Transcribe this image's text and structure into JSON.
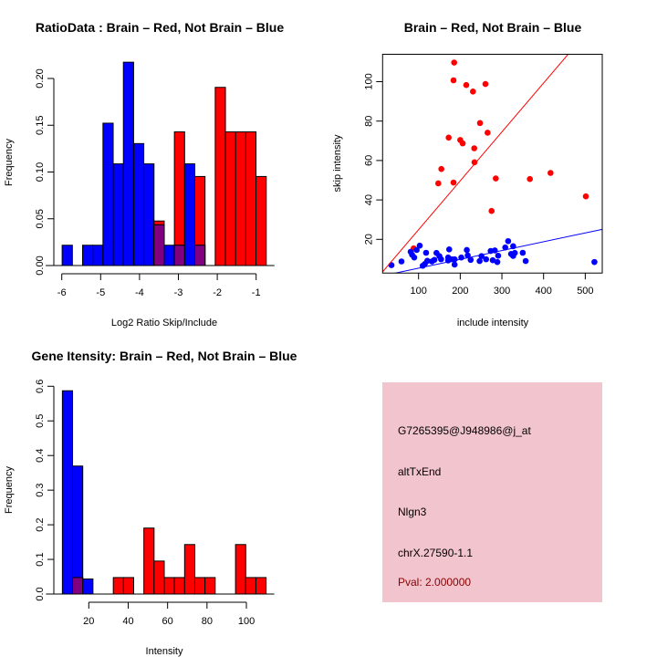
{
  "colors": {
    "brain": "#ff0000",
    "not_brain": "#0000ff",
    "overlap": "#800080",
    "info_bg": "#f2c4cd",
    "pval": "#8b0000"
  },
  "chart_data": [
    {
      "type": "bar",
      "subtype": "histogram",
      "title": "RatioData : Brain – Red, Not Brain – Blue",
      "xlabel": "Log2 Ratio Skip/Include",
      "ylabel": "Frequency",
      "bin_start": -5.99,
      "bin_width": 0.2625,
      "xticks": [
        "-6",
        "-5",
        "-4",
        "-3",
        "-2",
        "-1"
      ],
      "xtick_values": [
        -6,
        -5,
        -4,
        -3,
        -2,
        -1
      ],
      "yticks": [
        "0.00",
        "0.05",
        "0.10",
        "0.15",
        "0.20"
      ],
      "ytick_values": [
        0,
        0.05,
        0.1,
        0.15,
        0.2
      ],
      "series": [
        {
          "name": "Brain",
          "color": "red",
          "values": [
            0,
            0,
            0,
            0,
            0,
            0,
            0,
            0,
            0,
            0.0476,
            0,
            0.1429,
            0,
            0.0952,
            0,
            0.1905,
            0.1429,
            0.1429,
            0.1429,
            0.0952
          ]
        },
        {
          "name": "Not Brain",
          "color": "blue",
          "values": [
            0.0217,
            0,
            0.0217,
            0.0217,
            0.1522,
            0.1087,
            0.2174,
            0.1304,
            0.1087,
            0.0435,
            0.0217,
            0.0217,
            0.1087,
            0.0217,
            0,
            0,
            0,
            0,
            0,
            0
          ]
        }
      ]
    },
    {
      "type": "scatter",
      "title": "Brain – Red, Not Brain – Blue",
      "xlabel": "include intensity",
      "ylabel": "skip intensity",
      "xlim": [
        13.7,
        540.8
      ],
      "ylim": [
        2.9,
        113.9
      ],
      "xticks": [
        "100",
        "200",
        "300",
        "400",
        "500"
      ],
      "xtick_values": [
        100,
        200,
        300,
        400,
        500
      ],
      "yticks": [
        "20",
        "40",
        "60",
        "80",
        "100"
      ],
      "ytick_values": [
        20,
        40,
        60,
        80,
        100
      ],
      "series": [
        {
          "name": "Brain",
          "color": "red",
          "points": [
            [
              185.4,
              109.7
            ],
            [
              183.9,
              100.7
            ],
            [
              214.5,
              98.3
            ],
            [
              230.5,
              95
            ],
            [
              260.5,
              98.8
            ],
            [
              247.4,
              79
            ],
            [
              265.6,
              74.1
            ],
            [
              172.2,
              71.6
            ],
            [
              200,
              70.4
            ],
            [
              205.8,
              68.7
            ],
            [
              233.6,
              66.2
            ],
            [
              234.2,
              59.1
            ],
            [
              154.7,
              55.7
            ],
            [
              147.3,
              48.4
            ],
            [
              183.9,
              48.8
            ],
            [
              285.3,
              50.9
            ],
            [
              367.1,
              50.6
            ],
            [
              416.7,
              53.7
            ],
            [
              501.4,
              41.8
            ],
            [
              275.2,
              34.4
            ],
            [
              88.2,
              15.4
            ]
          ],
          "fit": {
            "intercept": 0.1,
            "slope": 0.248
          }
        },
        {
          "name": "Not Brain",
          "color": "blue",
          "points": [
            [
              35,
              6.9
            ],
            [
              59,
              8.8
            ],
            [
              81,
              13.7
            ],
            [
              84.5,
              12.2
            ],
            [
              89.6,
              10.8
            ],
            [
              95.5,
              14.6
            ],
            [
              102.8,
              16.8
            ],
            [
              110,
              6.6
            ],
            [
              115,
              7.5
            ],
            [
              118,
              13.2
            ],
            [
              121,
              9.1
            ],
            [
              132,
              8.8
            ],
            [
              138,
              9.6
            ],
            [
              143,
              13.1
            ],
            [
              150,
              11.5
            ],
            [
              154,
              9.9
            ],
            [
              171,
              10.8
            ],
            [
              173.5,
              14.9
            ],
            [
              171,
              9.3
            ],
            [
              179.5,
              9.9
            ],
            [
              186.5,
              9.9
            ],
            [
              186.5,
              7.2
            ],
            [
              202.6,
              10.8
            ],
            [
              215.8,
              14.6
            ],
            [
              218,
              11.9
            ],
            [
              225,
              9.6
            ],
            [
              246.5,
              9
            ],
            [
              251,
              11.5
            ],
            [
              262,
              9.9
            ],
            [
              273,
              14.1
            ],
            [
              283,
              14.4
            ],
            [
              278,
              9.4
            ],
            [
              289,
              8.5
            ],
            [
              291,
              11.7
            ],
            [
              308,
              15.9
            ],
            [
              315,
              19.1
            ],
            [
              322,
              12.6
            ],
            [
              327,
              16.5
            ],
            [
              327,
              11.6
            ],
            [
              331,
              13.1
            ],
            [
              350,
              13.2
            ],
            [
              357,
              9
            ],
            [
              522,
              8.5
            ]
          ],
          "fit": {
            "intercept": 0.9,
            "slope": 0.0447
          }
        }
      ]
    },
    {
      "type": "bar",
      "subtype": "histogram",
      "title": "Gene Itensity: Brain – Red, Not Brain – Blue",
      "xlabel": "Intensity",
      "ylabel": "Frequency",
      "bin_start": 6.6,
      "bin_width": 5.17,
      "xticks": [
        "20",
        "40",
        "60",
        "80",
        "100"
      ],
      "xtick_values": [
        20,
        40,
        60,
        80,
        100
      ],
      "yticks": [
        "0.0",
        "0.1",
        "0.2",
        "0.3",
        "0.4",
        "0.5",
        "0.6"
      ],
      "ytick_values": [
        0,
        0.1,
        0.2,
        0.3,
        0.4,
        0.5,
        0.6
      ],
      "series": [
        {
          "name": "Brain",
          "color": "red",
          "values": [
            0,
            0.0476,
            0,
            0,
            0,
            0.0476,
            0.0476,
            0,
            0.1905,
            0.0952,
            0.0476,
            0.0476,
            0.1429,
            0.0476,
            0.0476,
            0,
            0,
            0.1429,
            0.0476,
            0.0476
          ]
        },
        {
          "name": "Not Brain",
          "color": "blue",
          "values": [
            0.587,
            0.3696,
            0.0435,
            0,
            0,
            0,
            0,
            0,
            0,
            0,
            0,
            0,
            0,
            0,
            0,
            0,
            0,
            0,
            0,
            0
          ]
        }
      ]
    }
  ],
  "info": {
    "probe_id": "G7265395@J948986@j_at",
    "event_type": "altTxEnd",
    "gene": "Nlgn3",
    "locus": "chrX.27590-1.1",
    "pval": "Pval: 2.000000"
  }
}
